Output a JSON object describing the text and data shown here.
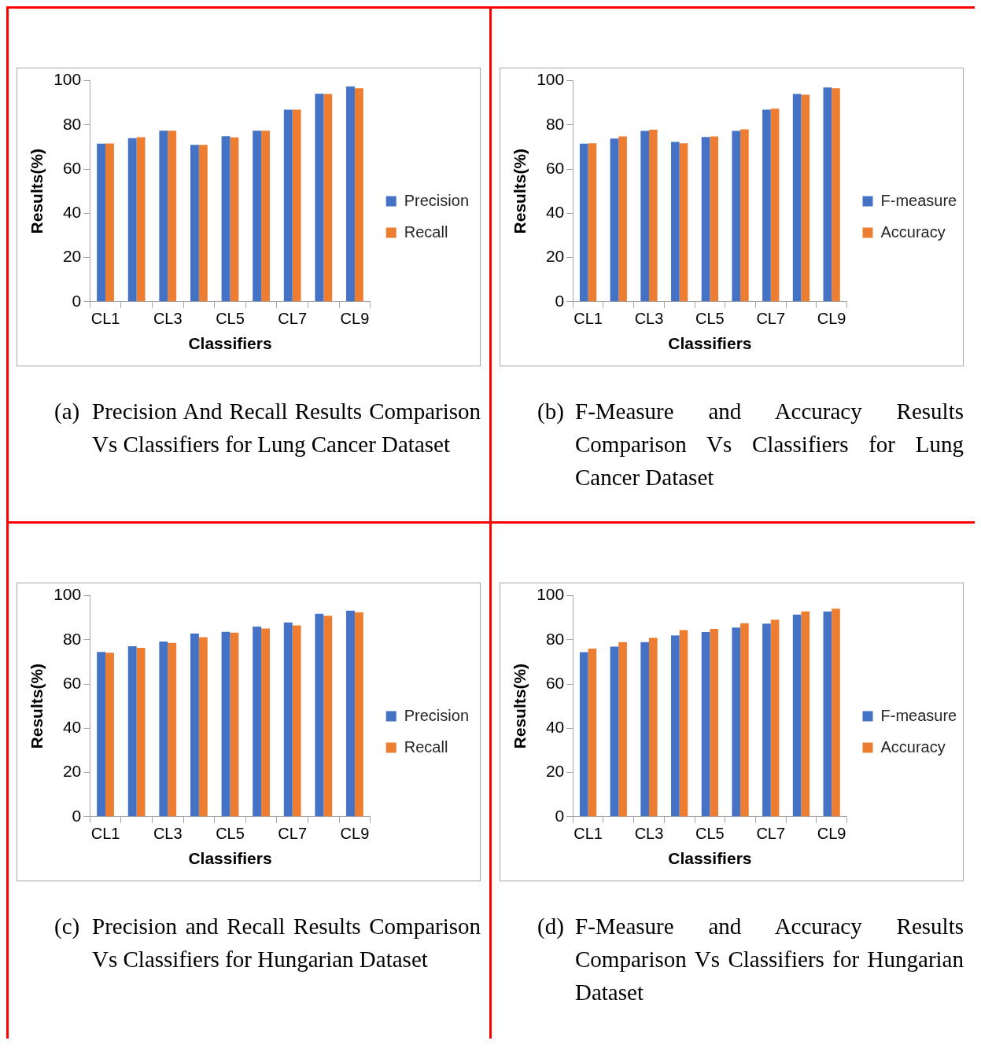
{
  "chart_data": [
    {
      "type": "bar",
      "title": "(a) Precision And Recall Results Comparison Vs Classifiers for Lung Cancer Dataset",
      "xlabel": "Classifiers",
      "ylabel": "Results(%)",
      "categories": [
        "CL1",
        null,
        "CL3",
        null,
        "CL5",
        null,
        "CL7",
        null,
        "CL9"
      ],
      "series": [
        {
          "name": "Precision",
          "color": "#4472c4",
          "values": [
            71.5,
            74,
            77.4,
            71,
            74.9,
            77.4,
            86.9,
            94.1,
            97.4
          ]
        },
        {
          "name": "Recall",
          "color": "#ed7d31",
          "values": [
            71.6,
            74.4,
            77.4,
            71,
            74.3,
            77.4,
            86.9,
            94,
            96.6
          ]
        }
      ],
      "ylim": [
        0,
        100
      ],
      "yticks": [
        0,
        20,
        40,
        60,
        80,
        100
      ],
      "legend": "right"
    },
    {
      "type": "bar",
      "title": "(b) F-Measure and Accuracy Results Comparison Vs Classifiers for Lung Cancer Dataset",
      "xlabel": "Classifiers",
      "ylabel": "Results(%)",
      "categories": [
        "CL1",
        null,
        "CL3",
        null,
        "CL5",
        null,
        "CL7",
        null,
        "CL9"
      ],
      "series": [
        {
          "name": "F-measure",
          "color": "#4472c4",
          "values": [
            71.5,
            73.8,
            77.3,
            72.3,
            74.5,
            77.3,
            86.9,
            94,
            96.9
          ]
        },
        {
          "name": "Accuracy",
          "color": "#ed7d31",
          "values": [
            71.7,
            74.8,
            77.8,
            71.7,
            74.8,
            78,
            87.3,
            93.6,
            96.6
          ]
        }
      ],
      "ylim": [
        0,
        100
      ],
      "yticks": [
        0,
        20,
        40,
        60,
        80,
        100
      ],
      "legend": "right"
    },
    {
      "type": "bar",
      "title": "(c) Precision and Recall Results Comparison Vs Classifiers for Hungarian Dataset",
      "xlabel": "Classifiers",
      "ylabel": "Results(%)",
      "categories": [
        "CL1",
        null,
        "CL3",
        null,
        "CL5",
        null,
        "CL7",
        null,
        "CL9"
      ],
      "series": [
        {
          "name": "Precision",
          "color": "#4472c4",
          "values": [
            74.5,
            77.1,
            79.2,
            82.9,
            83.6,
            86,
            87.9,
            91.8,
            93.2
          ]
        },
        {
          "name": "Recall",
          "color": "#ed7d31",
          "values": [
            74.2,
            76.4,
            78.6,
            81.2,
            83.2,
            85.1,
            86.5,
            90.9,
            92.5
          ]
        }
      ],
      "ylim": [
        0,
        100
      ],
      "yticks": [
        0,
        20,
        40,
        60,
        80,
        100
      ],
      "legend": "right"
    },
    {
      "type": "bar",
      "title": "(d) F-Measure and Accuracy Results Comparison Vs Classifiers for Hungarian Dataset",
      "xlabel": "Classifiers",
      "ylabel": "Results(%)",
      "categories": [
        "CL1",
        null,
        "CL3",
        null,
        "CL5",
        null,
        "CL7",
        null,
        "CL9"
      ],
      "series": [
        {
          "name": "F-measure",
          "color": "#4472c4",
          "values": [
            74.4,
            76.9,
            79,
            82,
            83.5,
            85.5,
            87.3,
            91.4,
            92.8
          ]
        },
        {
          "name": "Accuracy",
          "color": "#ed7d31",
          "values": [
            76,
            79,
            80.9,
            84.4,
            84.9,
            87.5,
            89.1,
            92.8,
            94.1
          ]
        }
      ],
      "ylim": [
        0,
        100
      ],
      "yticks": [
        0,
        20,
        40,
        60,
        80,
        100
      ],
      "legend": "right"
    }
  ]
}
